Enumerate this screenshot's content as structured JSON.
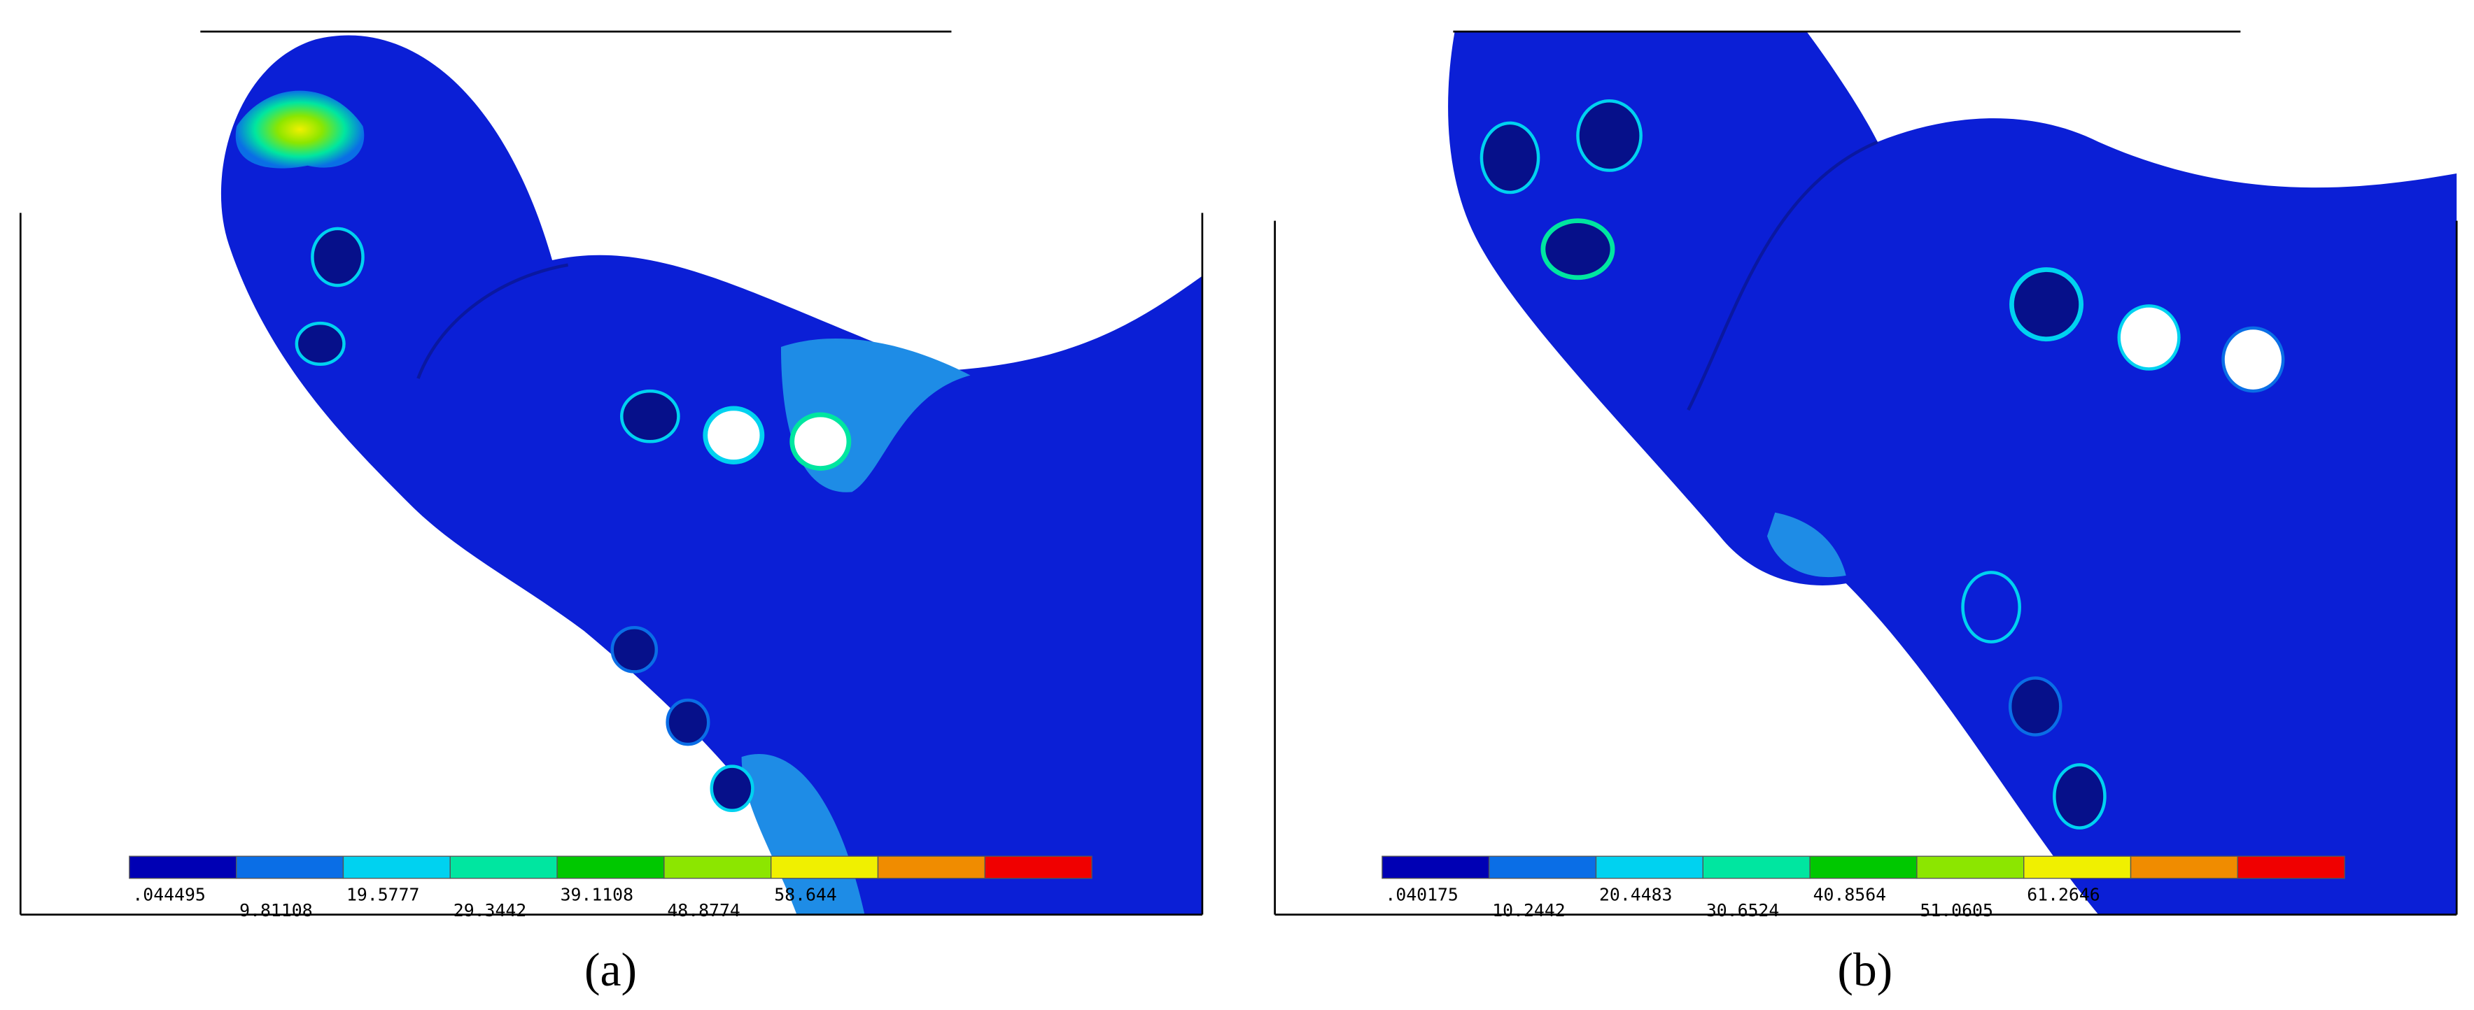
{
  "panels": [
    {
      "label": "(a)",
      "colorbar": {
        "colors": [
          "#0000b4",
          "#0a6ee6",
          "#00d2f0",
          "#00e6a0",
          "#00c800",
          "#8ce600",
          "#f0f000",
          "#f08c00",
          "#f00000"
        ],
        "labels": [
          ".044495",
          "9.81108",
          "19.5777",
          "29.3442",
          "39.1108",
          "48.8774",
          "58.644"
        ]
      }
    },
    {
      "label": "(b)",
      "colorbar": {
        "colors": [
          "#0000b4",
          "#0a6ee6",
          "#00d2f0",
          "#00e6a0",
          "#00c800",
          "#8ce600",
          "#f0f000",
          "#f08c00",
          "#f00000"
        ],
        "labels": [
          ".040175",
          "10.2442",
          "20.4483",
          "30.6524",
          "40.8564",
          "51.0605",
          "61.2646"
        ]
      }
    }
  ]
}
